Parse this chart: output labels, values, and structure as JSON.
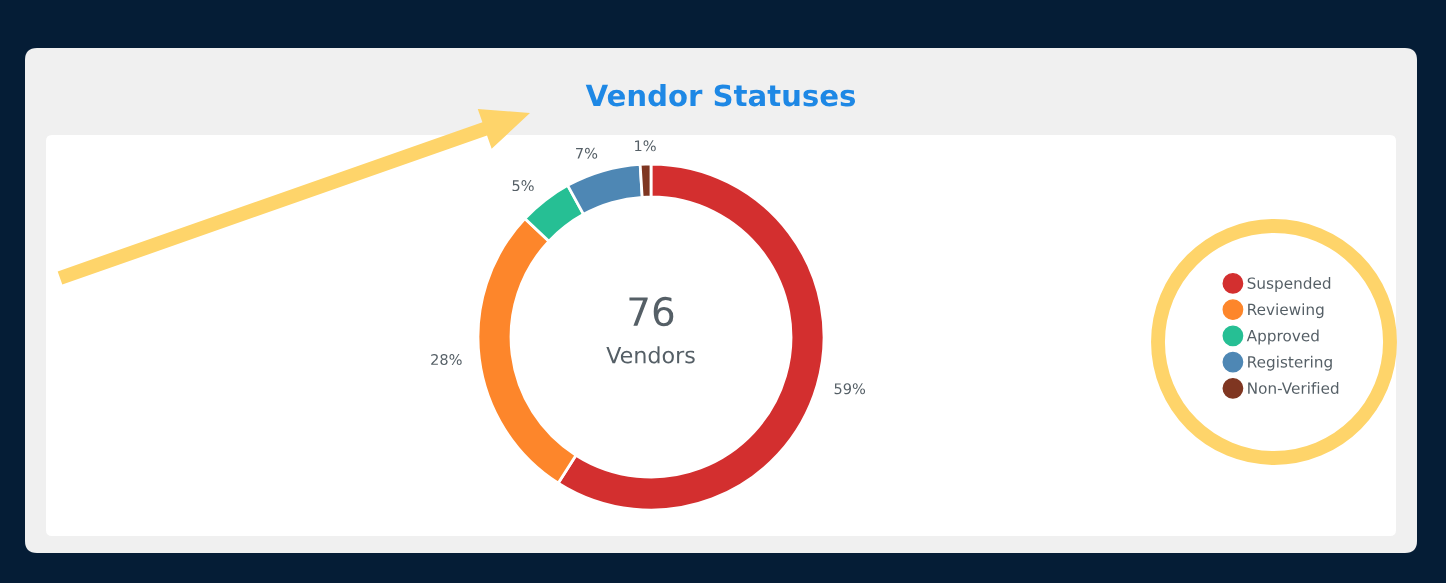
{
  "chart_data": {
    "type": "donut",
    "title": "Vendor Statuses",
    "categories": [
      "Suspended",
      "Reviewing",
      "Approved",
      "Registering",
      "Non-Verified"
    ],
    "values": [
      59,
      28,
      5,
      7,
      1
    ],
    "colors": [
      "#d32f2f",
      "#fd862b",
      "#26bf94",
      "#4e87b4",
      "#7f3621"
    ],
    "value_labels": [
      "59%",
      "28%",
      "5%",
      "7%",
      "1%"
    ],
    "annotations": [
      "76",
      "Vendors"
    ],
    "legend": "right"
  }
}
